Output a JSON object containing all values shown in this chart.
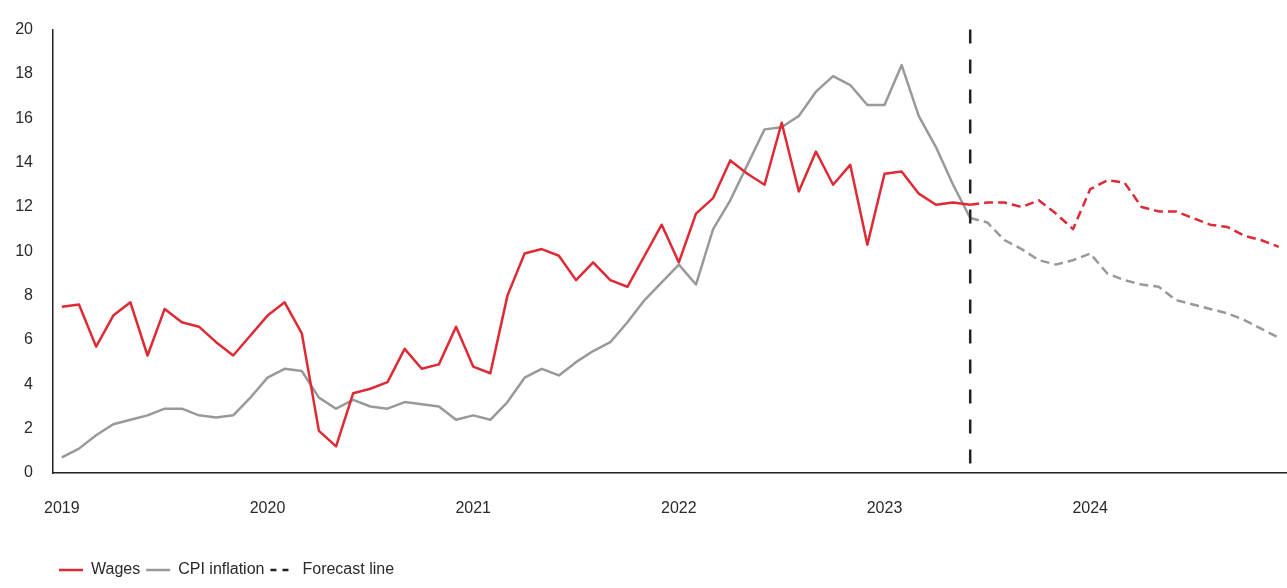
{
  "chart_data": {
    "type": "line",
    "marker": "none",
    "legend": "bottom left",
    "xlim": [
      "2018-12-16",
      "2024-12-16"
    ],
    "xticks": [
      {
        "value": "2019-01",
        "label": "2019"
      },
      {
        "value": "2020-01",
        "label": "2020"
      },
      {
        "value": "2021-01",
        "label": "2021"
      },
      {
        "value": "2022-01",
        "label": "2022"
      },
      {
        "value": "2023-01",
        "label": "2023"
      },
      {
        "value": "2024-01",
        "label": "2024"
      }
    ],
    "ylim": [
      0,
      20
    ],
    "yticks": [
      0,
      2,
      4,
      6,
      8,
      10,
      12,
      14,
      16,
      18,
      20
    ],
    "series": [
      {
        "name": "Wages",
        "color": "#de2a35",
        "line_style": "solid",
        "x": [
          "2019-01",
          "2019-02",
          "2019-03",
          "2019-04",
          "2019-05",
          "2019-06",
          "2019-07",
          "2019-08",
          "2019-09",
          "2019-10",
          "2019-11",
          "2019-12",
          "2020-01",
          "2020-02",
          "2020-03",
          "2020-04",
          "2020-05",
          "2020-06",
          "2020-07",
          "2020-08",
          "2020-09",
          "2020-10",
          "2020-11",
          "2020-12",
          "2021-01",
          "2021-02",
          "2021-03",
          "2021-04",
          "2021-05",
          "2021-06",
          "2021-07",
          "2021-08",
          "2021-09",
          "2021-10",
          "2021-11",
          "2021-12",
          "2022-01",
          "2022-02",
          "2022-03",
          "2022-04",
          "2022-05",
          "2022-06",
          "2022-07",
          "2022-08",
          "2022-09",
          "2022-10",
          "2022-11",
          "2022-12",
          "2023-01",
          "2023-02",
          "2023-03",
          "2023-04",
          "2023-05",
          "2023-06"
        ],
        "values": [
          7.5,
          7.6,
          5.7,
          7.1,
          7.7,
          5.3,
          7.4,
          6.8,
          6.6,
          5.9,
          5.3,
          6.2,
          7.1,
          7.7,
          6.3,
          1.9,
          1.2,
          3.6,
          3.8,
          4.1,
          5.6,
          4.7,
          4.9,
          6.6,
          4.8,
          4.5,
          8.0,
          9.9,
          10.1,
          9.8,
          8.7,
          9.5,
          8.7,
          8.4,
          9.8,
          11.2,
          9.5,
          11.7,
          12.4,
          14.1,
          13.5,
          13.0,
          15.8,
          12.7,
          14.5,
          13.0,
          13.9,
          10.3,
          13.5,
          13.6,
          12.6,
          12.1,
          12.2,
          12.1
        ]
      },
      {
        "color": "#de2a35",
        "line_style": "dashed",
        "x": [
          "2023-06",
          "2023-07",
          "2023-08",
          "2023-09",
          "2023-10",
          "2023-11",
          "2023-12",
          "2024-01",
          "2024-02",
          "2024-03",
          "2024-04",
          "2024-05",
          "2024-06",
          "2024-07",
          "2024-08",
          "2024-09",
          "2024-10",
          "2024-11",
          "2024-12"
        ],
        "values": [
          12.1,
          12.2,
          12.2,
          12.0,
          12.3,
          11.7,
          11.0,
          12.8,
          13.2,
          13.1,
          12.0,
          11.8,
          11.8,
          11.5,
          11.2,
          11.1,
          10.7,
          10.5,
          10.2
        ]
      },
      {
        "name": "CPI inflation",
        "color": "#999999",
        "line_style": "solid",
        "x": [
          "2019-01",
          "2019-02",
          "2019-03",
          "2019-04",
          "2019-05",
          "2019-06",
          "2019-07",
          "2019-08",
          "2019-09",
          "2019-10",
          "2019-11",
          "2019-12",
          "2020-01",
          "2020-02",
          "2020-03",
          "2020-04",
          "2020-05",
          "2020-06",
          "2020-07",
          "2020-08",
          "2020-09",
          "2020-10",
          "2020-11",
          "2020-12",
          "2021-01",
          "2021-02",
          "2021-03",
          "2021-04",
          "2021-05",
          "2021-06",
          "2021-07",
          "2021-08",
          "2021-09",
          "2021-10",
          "2021-11",
          "2021-12",
          "2022-01",
          "2022-02",
          "2022-03",
          "2022-04",
          "2022-05",
          "2022-06",
          "2022-07",
          "2022-08",
          "2022-09",
          "2022-10",
          "2022-11",
          "2022-12",
          "2023-01",
          "2023-02",
          "2023-03",
          "2023-04",
          "2023-05",
          "2023-06"
        ],
        "values": [
          0.7,
          1.1,
          1.7,
          2.2,
          2.4,
          2.6,
          2.9,
          2.9,
          2.6,
          2.5,
          2.6,
          3.4,
          4.3,
          4.7,
          4.6,
          3.4,
          2.9,
          3.3,
          3.0,
          2.9,
          3.2,
          3.1,
          3.0,
          2.4,
          2.6,
          2.4,
          3.2,
          4.3,
          4.7,
          4.4,
          5.0,
          5.5,
          5.9,
          6.8,
          7.8,
          8.6,
          9.4,
          8.5,
          11.0,
          12.3,
          13.9,
          15.5,
          15.6,
          16.1,
          17.2,
          17.9,
          17.5,
          16.6,
          16.6,
          18.4,
          16.1,
          14.7,
          13.0,
          11.5
        ]
      },
      {
        "color": "#999999",
        "line_style": "dashed",
        "x": [
          "2023-06",
          "2023-07",
          "2023-08",
          "2023-09",
          "2023-10",
          "2023-11",
          "2023-12",
          "2024-01",
          "2024-02",
          "2024-03",
          "2024-04",
          "2024-05",
          "2024-06",
          "2024-07",
          "2024-08",
          "2024-09",
          "2024-10",
          "2024-11",
          "2024-12"
        ],
        "values": [
          11.5,
          11.3,
          10.5,
          10.1,
          9.6,
          9.4,
          9.6,
          9.9,
          9.0,
          8.7,
          8.5,
          8.4,
          7.8,
          7.6,
          7.4,
          7.2,
          6.9,
          6.5,
          6.1
        ]
      }
    ],
    "ref_lines": [
      {
        "axis": "x",
        "value": "2023-06",
        "label": "Forecast line",
        "color": "#222222",
        "line_style": "dashed"
      }
    ]
  }
}
